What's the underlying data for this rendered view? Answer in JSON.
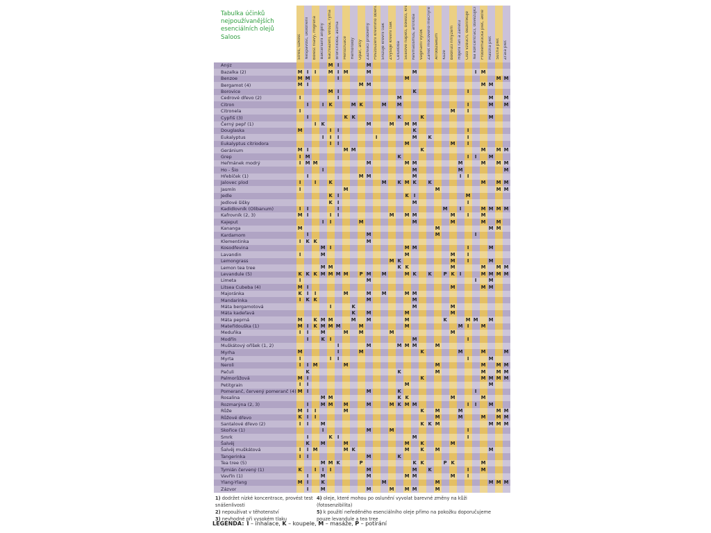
{
  "title": "Tabulka účinků nejpoužívanějších esenciálních olejů Saloos",
  "columns": [
    "Stres, úzkost",
    "Nespavost, uklidnění",
    "Bolest hlavy, migréna",
    "Bakteriální angíny",
    "Nachlazení, viróza, rýma",
    "Bronchitida, astma",
    "Menstruace",
    "Hemoroidy",
    "Opar, afty",
    "Zažívací problémy",
    "Povzbuzení krevního oběhu",
    "Snižuje krevní tlak",
    "Zvyšuje krevní tlak",
    "Celulitida",
    "Svalové napětí, bolesti, křeče",
    "Revmatismus, artritida",
    "Vaginální výtok",
    "Zánět močového měchýře",
    "Afrodiziakum",
    "Kůže",
    "Bodnutí hmyzem",
    "Hojení ran a zánětů",
    "Čistí vzduch, dezinfikuje",
    "Na koncentraci, osvěžující",
    "Problematická pleť, akné",
    "Mastná pleť",
    "Suchá pleť",
    "Zralá pleť"
  ],
  "rows": [
    {
      "name": "Anýz",
      "marks": {
        "5": "M",
        "6": "I",
        "10": "M"
      }
    },
    {
      "name": "Bazalka (2)",
      "marks": {
        "1": "M",
        "2": "I",
        "3": "I",
        "5": "M",
        "6": "I",
        "7": "M",
        "10": "M",
        "16": "M",
        "24": "I",
        "25": "M"
      }
    },
    {
      "name": "Benzoe",
      "marks": {
        "1": "M",
        "2": "M",
        "6": "I",
        "15": "M",
        "27": "M",
        "28": "M"
      }
    },
    {
      "name": "Bergamot (4)",
      "marks": {
        "1": "M",
        "2": "I",
        "9": "M",
        "10": "M",
        "25": "M",
        "26": "M"
      }
    },
    {
      "name": "Borovice",
      "marks": {
        "5": "M",
        "6": "I",
        "16": "K",
        "23": "I"
      }
    },
    {
      "name": "Cedrové dřevo (2)",
      "marks": {
        "1": "I",
        "6": "I",
        "14": "M",
        "26": "M",
        "28": "M"
      }
    },
    {
      "name": "Citron",
      "marks": {
        "2": "I",
        "4": "I",
        "5": "K",
        "8": "M",
        "9": "K",
        "12": "M",
        "14": "M",
        "23": "I",
        "26": "M",
        "28": "M"
      }
    },
    {
      "name": "Citronela",
      "marks": {
        "1": "I",
        "21": "M",
        "23": "I"
      }
    },
    {
      "name": "Cypřiš (3)",
      "marks": {
        "2": "I",
        "7": "K",
        "8": "K",
        "14": "K",
        "17": "K",
        "26": "M"
      }
    },
    {
      "name": "Černý pepř (1)",
      "marks": {
        "3": "I",
        "4": "K",
        "10": "M",
        "13": "M",
        "15": "M",
        "16": "M"
      }
    },
    {
      "name": "Douglaska",
      "marks": {
        "1": "M",
        "5": "I",
        "6": "I",
        "16": "K",
        "23": "I"
      }
    },
    {
      "name": "Eukalyptus",
      "marks": {
        "4": "I",
        "5": "I",
        "6": "I",
        "11": "I",
        "16": "M",
        "18": "K",
        "23": "I"
      }
    },
    {
      "name": "Eukalyptus citriodora",
      "marks": {
        "5": "I",
        "6": "I",
        "15": "M",
        "21": "M",
        "23": "I"
      }
    },
    {
      "name": "Geránium",
      "marks": {
        "1": "M",
        "2": "I",
        "7": "M",
        "8": "M",
        "17": "K",
        "25": "M",
        "27": "M",
        "28": "M"
      }
    },
    {
      "name": "Grep",
      "marks": {
        "1": "I",
        "2": "M",
        "14": "K",
        "23": "I",
        "24": "I",
        "26": "M"
      }
    },
    {
      "name": "Heřmánek modrý",
      "marks": {
        "1": "I",
        "2": "M",
        "3": "M",
        "10": "M",
        "15": "M",
        "16": "M",
        "22": "M",
        "25": "M",
        "27": "M",
        "28": "M"
      }
    },
    {
      "name": "Ho - Šio",
      "marks": {
        "4": "I",
        "16": "M",
        "22": "M",
        "28": "M"
      }
    },
    {
      "name": "Hřebíček (1)",
      "marks": {
        "2": "I",
        "9": "M",
        "10": "M",
        "16": "M",
        "22": "I",
        "23": "I"
      }
    },
    {
      "name": "Jalovec plod",
      "marks": {
        "1": "I",
        "3": "I",
        "5": "K",
        "12": "M",
        "14": "K",
        "15": "M",
        "16": "K",
        "18": "K",
        "25": "M",
        "27": "M",
        "28": "M"
      }
    },
    {
      "name": "Jasmín",
      "marks": {
        "1": "I",
        "7": "M",
        "19": "M",
        "27": "M",
        "28": "M"
      }
    },
    {
      "name": "Jedle",
      "marks": {
        "5": "K",
        "6": "I",
        "15": "K",
        "16": "I",
        "23": "M"
      }
    },
    {
      "name": "Jedlové šišky",
      "marks": {
        "5": "K",
        "6": "I",
        "16": "M",
        "23": "I"
      }
    },
    {
      "name": "Kadidlovník (Olibanum)",
      "marks": {
        "1": "I",
        "2": "I",
        "6": "I",
        "20": "M",
        "22": "I",
        "25": "M",
        "26": "M",
        "27": "M",
        "28": "M"
      }
    },
    {
      "name": "Kafrovník (2, 3)",
      "marks": {
        "1": "M",
        "2": "I",
        "5": "I",
        "6": "I",
        "13": "M",
        "15": "M",
        "16": "M",
        "21": "M",
        "23": "I",
        "25": "M"
      }
    },
    {
      "name": "Kajeput",
      "marks": {
        "4": "I",
        "5": "I",
        "9": "M",
        "16": "M",
        "21": "M",
        "25": "M",
        "27": "M"
      }
    },
    {
      "name": "Kananga",
      "marks": {
        "1": "M",
        "19": "M",
        "26": "M",
        "27": "M"
      }
    },
    {
      "name": "Kardamom",
      "marks": {
        "2": "I",
        "10": "M",
        "19": "M",
        "24": "I"
      }
    },
    {
      "name": "Klementinka",
      "marks": {
        "1": "I",
        "2": "K",
        "3": "K",
        "10": "M"
      }
    },
    {
      "name": "Kosodřevina",
      "marks": {
        "4": "M",
        "5": "I",
        "15": "M",
        "16": "M",
        "23": "I",
        "26": "M"
      }
    },
    {
      "name": "Lavandin",
      "marks": {
        "1": "I",
        "4": "M",
        "15": "M",
        "21": "M",
        "23": "I"
      }
    },
    {
      "name": "Lemongrass",
      "marks": {
        "13": "M",
        "14": "K",
        "21": "M",
        "23": "I",
        "26": "M"
      }
    },
    {
      "name": "Lemon tea tree",
      "marks": {
        "4": "M",
        "5": "M",
        "14": "K",
        "15": "K",
        "21": "M",
        "25": "M",
        "27": "M",
        "28": "M"
      }
    },
    {
      "name": "Levandule (5)",
      "marks": {
        "1": "K",
        "2": "K",
        "3": "K",
        "4": "M",
        "5": "M",
        "6": "M",
        "7": "M",
        "9": "P",
        "10": "M",
        "12": "M",
        "15": "M",
        "16": "K",
        "18": "K",
        "20": "P",
        "21": "K",
        "22": "I",
        "25": "M",
        "26": "M",
        "27": "M",
        "28": "M"
      }
    },
    {
      "name": "Limeta",
      "marks": {
        "1": "I",
        "10": "M",
        "24": "I",
        "26": "M"
      }
    },
    {
      "name": "Litsea Cubeba (4)",
      "marks": {
        "1": "M",
        "2": "I",
        "21": "M",
        "25": "M",
        "26": "M"
      }
    },
    {
      "name": "Majoránka",
      "marks": {
        "1": "K",
        "2": "I",
        "3": "I",
        "7": "M",
        "10": "M",
        "12": "M",
        "15": "M",
        "16": "M"
      }
    },
    {
      "name": "Mandarinka",
      "marks": {
        "1": "I",
        "2": "K",
        "3": "K",
        "10": "M",
        "16": "M"
      }
    },
    {
      "name": "Máta bergamotová",
      "marks": {
        "5": "I",
        "8": "K",
        "16": "M",
        "21": "M"
      }
    },
    {
      "name": "Máta kadeřavá",
      "marks": {
        "8": "K",
        "10": "M",
        "15": "M",
        "21": "M"
      }
    },
    {
      "name": "Máta peprná",
      "marks": {
        "1": "M",
        "3": "K",
        "4": "M",
        "5": "M",
        "8": "M",
        "10": "M",
        "15": "M",
        "20": "K",
        "23": "M",
        "24": "M",
        "26": "M"
      }
    },
    {
      "name": "Mateřídouška (1)",
      "marks": {
        "1": "M",
        "2": "I",
        "3": "K",
        "4": "M",
        "5": "M",
        "6": "M",
        "9": "M",
        "15": "M",
        "22": "M",
        "23": "I",
        "25": "M"
      }
    },
    {
      "name": "Meduňka",
      "marks": {
        "1": "I",
        "2": "I",
        "4": "M",
        "7": "M",
        "9": "M",
        "13": "M",
        "21": "M"
      }
    },
    {
      "name": "Modřín",
      "marks": {
        "2": "I",
        "4": "K",
        "5": "I",
        "16": "M",
        "23": "I"
      }
    },
    {
      "name": "Muškátový oříšek (1, 2)",
      "marks": {
        "6": "I",
        "10": "M",
        "14": "M",
        "15": "M",
        "16": "M",
        "19": "M"
      }
    },
    {
      "name": "Myrha",
      "marks": {
        "1": "M",
        "6": "I",
        "9": "M",
        "17": "K",
        "22": "M",
        "25": "M",
        "28": "M"
      }
    },
    {
      "name": "Myrta",
      "marks": {
        "1": "I",
        "5": "I",
        "6": "I",
        "23": "I",
        "26": "M"
      }
    },
    {
      "name": "Neroli",
      "marks": {
        "1": "I",
        "2": "I",
        "3": "M",
        "7": "M",
        "19": "M",
        "25": "M",
        "27": "M",
        "28": "M"
      }
    },
    {
      "name": "Pačuli",
      "marks": {
        "2": "K",
        "14": "K",
        "19": "M",
        "25": "M",
        "27": "M",
        "28": "M"
      }
    },
    {
      "name": "Palmorůžová",
      "marks": {
        "1": "M",
        "2": "I",
        "17": "K",
        "25": "M",
        "26": "M",
        "27": "M",
        "28": "M"
      }
    },
    {
      "name": "Petitgrain",
      "marks": {
        "1": "I",
        "2": "I",
        "15": "M",
        "26": "M"
      }
    },
    {
      "name": "Pomeranč, červený pomeranč (4)",
      "marks": {
        "1": "M",
        "2": "I",
        "10": "M",
        "14": "K",
        "24": "I"
      }
    },
    {
      "name": "Rosalina",
      "marks": {
        "4": "M",
        "5": "M",
        "14": "K",
        "15": "K",
        "21": "M",
        "25": "M"
      }
    },
    {
      "name": "Rozmarýna (2, 3)",
      "marks": {
        "2": "I",
        "4": "M",
        "5": "M",
        "7": "M",
        "10": "M",
        "13": "M",
        "14": "K",
        "15": "M",
        "16": "M",
        "23": "I",
        "24": "I",
        "26": "M"
      }
    },
    {
      "name": "Růže",
      "marks": {
        "1": "M",
        "2": "I",
        "3": "I",
        "7": "M",
        "17": "K",
        "19": "M",
        "22": "M",
        "27": "M",
        "28": "M"
      }
    },
    {
      "name": "Růžové dřevo",
      "marks": {
        "1": "K",
        "2": "I",
        "3": "I",
        "19": "M",
        "22": "M",
        "25": "M",
        "27": "M",
        "28": "M"
      }
    },
    {
      "name": "Santalové dřevo (2)",
      "marks": {
        "1": "I",
        "2": "I",
        "4": "M",
        "17": "K",
        "18": "K",
        "19": "M",
        "26": "M",
        "27": "M",
        "28": "M"
      }
    },
    {
      "name": "Skořice (1)",
      "marks": {
        "4": "I",
        "10": "M",
        "13": "M",
        "23": "I"
      }
    },
    {
      "name": "Smrk",
      "marks": {
        "2": "I",
        "5": "K",
        "6": "I",
        "16": "M",
        "23": "I"
      }
    },
    {
      "name": "Šalvěj",
      "marks": {
        "2": "K",
        "4": "M",
        "7": "M",
        "15": "M",
        "17": "K",
        "21": "M"
      }
    },
    {
      "name": "Šalvěj muškátová",
      "marks": {
        "1": "I",
        "2": "I",
        "3": "M",
        "7": "M",
        "8": "K",
        "15": "M",
        "17": "K",
        "19": "M",
        "26": "M"
      }
    },
    {
      "name": "Tangerinka",
      "marks": {
        "1": "I",
        "2": "I",
        "10": "M",
        "14": "K"
      }
    },
    {
      "name": "Tea tree (5)",
      "marks": {
        "4": "M",
        "5": "M",
        "6": "K",
        "9": "P",
        "16": "K",
        "17": "K",
        "20": "P",
        "21": "K",
        "25": "M"
      }
    },
    {
      "name": "Tymián červený (1)",
      "marks": {
        "1": "K",
        "3": "I",
        "4": "I",
        "5": "I",
        "10": "M",
        "16": "M",
        "18": "K",
        "23": "I",
        "25": "M"
      }
    },
    {
      "name": "Vavřín (1)",
      "marks": {
        "2": "I",
        "4": "M",
        "10": "M",
        "15": "M",
        "16": "M",
        "21": "M",
        "23": "I"
      }
    },
    {
      "name": "Ylang-Ylang",
      "marks": {
        "1": "M",
        "2": "I",
        "4": "K",
        "12": "M",
        "19": "M",
        "26": "M",
        "27": "M",
        "28": "M"
      }
    },
    {
      "name": "Zázvor",
      "marks": {
        "2": "I",
        "4": "M",
        "10": "M",
        "13": "M",
        "15": "M",
        "16": "M",
        "19": "M"
      }
    }
  ],
  "footnotes": {
    "left": [
      {
        "num": "1)",
        "text": "dodržet nízké koncentrace, provést test snášenlivosti"
      },
      {
        "num": "2)",
        "text": "nepoužívat v těhotenství"
      },
      {
        "num": "3)",
        "text": "nevhodné při vysokém tlaku"
      }
    ],
    "right": [
      {
        "num": "4)",
        "text": "oleje, které mohou po oslunění vyvolat barevné změny na kůži (fotosenzibilita)"
      },
      {
        "num": "5)",
        "text": "k použití neředěného esenciálního oleje přímo na pokožku doporučujeme pouze levandule a tea tree"
      }
    ]
  },
  "legend": {
    "label": "LEGENDA:",
    "items": [
      {
        "key": "I",
        "label": "inhalace"
      },
      {
        "key": "K",
        "label": "koupele"
      },
      {
        "key": "M",
        "label": "masáže"
      },
      {
        "key": "P",
        "label": "potírání"
      }
    ]
  },
  "colors": {
    "title_green": "#2f9e3f",
    "column_yellow_dark": "#e4bf63",
    "column_yellow_light": "#eed693",
    "column_lavender_dark": "#b4a9c8",
    "column_lavender_light": "#cdc6db",
    "label_column_dark": "#b0a4c4",
    "label_column_light": "#c4bbd3",
    "mark_text": "#1e1e1e",
    "page_background": "#ffffff"
  }
}
